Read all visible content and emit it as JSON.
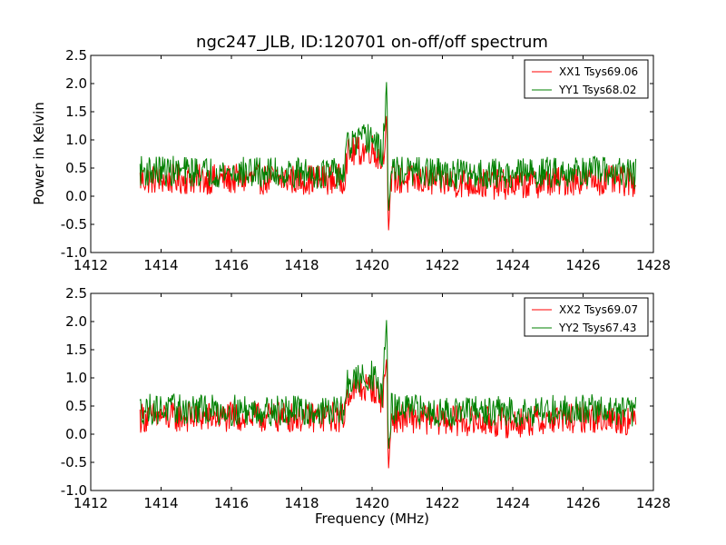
{
  "figure": {
    "title": "ngc247_JLB, ID:120701 on-off/off spectrum",
    "xlabel": "Frequency (MHz)",
    "ylabel": "Power in Kelvin"
  },
  "chart_data": [
    {
      "type": "line",
      "title": "ngc247_JLB, ID:120701 on-off/off spectrum",
      "xlabel": "",
      "ylabel": "Power in Kelvin",
      "xlim": [
        1412,
        1428
      ],
      "ylim": [
        -1.0,
        2.5
      ],
      "xticks": [
        "1412",
        "1414",
        "1416",
        "1418",
        "1420",
        "1422",
        "1424",
        "1426",
        "1428"
      ],
      "yticks": [
        "2.5",
        "2.0",
        "1.5",
        "1.0",
        "0.5",
        "0.0",
        "-0.5",
        "-1.0"
      ],
      "legend_position": "top-right",
      "x_range": [
        1413.4,
        1427.5
      ],
      "series": [
        {
          "name": "XX1 Tsys69.06",
          "color": "#ff0000",
          "baseline": 0.28,
          "points": [
            [
              1413.4,
              0.3
            ],
            [
              1419.2,
              0.3
            ],
            [
              1419.3,
              0.75
            ],
            [
              1420.0,
              0.85
            ],
            [
              1420.3,
              0.6
            ],
            [
              1420.42,
              1.5
            ],
            [
              1420.46,
              -0.72
            ],
            [
              1420.55,
              0.3
            ],
            [
              1422,
              0.25
            ],
            [
              1424,
              0.2
            ],
            [
              1426,
              0.3
            ],
            [
              1427.5,
              0.25
            ]
          ]
        },
        {
          "name": "YY1 Tsys68.02",
          "color": "#008000",
          "baseline": 0.42,
          "points": [
            [
              1413.4,
              0.45
            ],
            [
              1419.2,
              0.4
            ],
            [
              1419.3,
              0.9
            ],
            [
              1420.0,
              1.05
            ],
            [
              1420.3,
              0.7
            ],
            [
              1420.42,
              2.15
            ],
            [
              1420.46,
              -0.35
            ],
            [
              1420.55,
              0.45
            ],
            [
              1422,
              0.4
            ],
            [
              1424,
              0.4
            ],
            [
              1426,
              0.45
            ],
            [
              1427.5,
              0.4
            ]
          ]
        }
      ]
    },
    {
      "type": "line",
      "title": "",
      "xlabel": "Frequency (MHz)",
      "ylabel": "",
      "xlim": [
        1412,
        1428
      ],
      "ylim": [
        -1.0,
        2.5
      ],
      "xticks": [
        "1412",
        "1414",
        "1416",
        "1418",
        "1420",
        "1422",
        "1424",
        "1426",
        "1428"
      ],
      "yticks": [
        "2.5",
        "2.0",
        "1.5",
        "1.0",
        "0.5",
        "0.0",
        "-0.5",
        "-1.0"
      ],
      "legend_position": "top-right",
      "x_range": [
        1413.4,
        1427.5
      ],
      "series": [
        {
          "name": "XX2 Tsys69.07",
          "color": "#ff0000",
          "baseline": 0.28,
          "points": [
            [
              1413.4,
              0.3
            ],
            [
              1419.2,
              0.3
            ],
            [
              1419.3,
              0.75
            ],
            [
              1420.0,
              0.85
            ],
            [
              1420.3,
              0.6
            ],
            [
              1420.42,
              1.4
            ],
            [
              1420.46,
              -0.72
            ],
            [
              1420.55,
              0.3
            ],
            [
              1422,
              0.25
            ],
            [
              1424,
              0.2
            ],
            [
              1426,
              0.3
            ],
            [
              1427.5,
              0.25
            ]
          ]
        },
        {
          "name": "YY2 Tsys67.43",
          "color": "#008000",
          "baseline": 0.42,
          "points": [
            [
              1413.4,
              0.45
            ],
            [
              1419.2,
              0.4
            ],
            [
              1419.3,
              0.9
            ],
            [
              1420.0,
              1.05
            ],
            [
              1420.3,
              0.7
            ],
            [
              1420.42,
              2.15
            ],
            [
              1420.46,
              -0.35
            ],
            [
              1420.55,
              0.45
            ],
            [
              1422,
              0.4
            ],
            [
              1424,
              0.4
            ],
            [
              1426,
              0.45
            ],
            [
              1427.5,
              0.4
            ]
          ]
        }
      ]
    }
  ]
}
